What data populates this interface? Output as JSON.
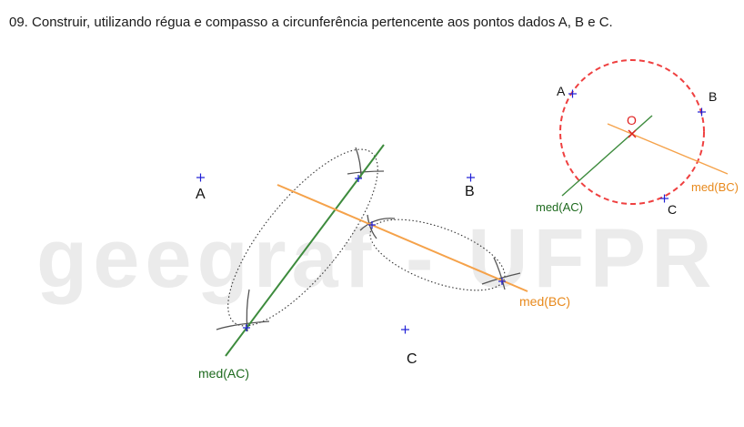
{
  "title": "09.  Construir, utilizando régua e compasso a circunferência pertencente aos pontos dados A, B e C.",
  "watermark": "geegraf - UFPR",
  "points": {
    "A": "A",
    "B": "B",
    "C": "C",
    "center": "O"
  },
  "labels": {
    "bisector_ac": "med(AC)",
    "bisector_bc": "med(BC)"
  },
  "colors": {
    "point_marker": "#1f1fd6",
    "bisector_ac": "#3d8b3d",
    "bisector_ac_label": "#1e6a1e",
    "bisector_bc": "#f5a24a",
    "bisector_bc_label": "#e8891c",
    "arc": "#555555",
    "circle": "#ef4040",
    "center_marker": "#e02020",
    "text": "#111111"
  }
}
